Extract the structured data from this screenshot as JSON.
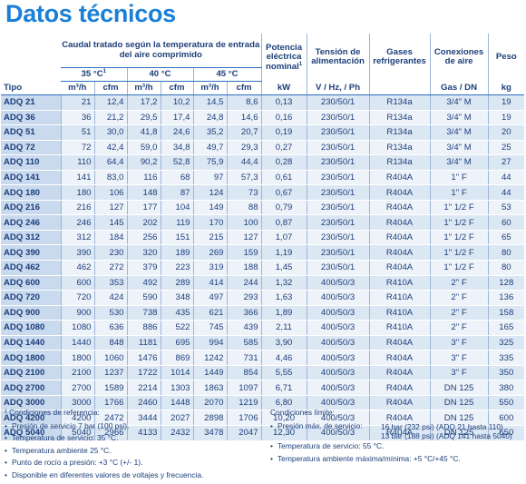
{
  "title": "Datos técnicos",
  "headers": {
    "caudal": "Caudal tratado según la temperatura de entrada del aire comprimido",
    "potencia": "Potencia eléctrica nominal",
    "potencia_sup": "1",
    "tension": "Tensión de alimentación",
    "gases": "Gases refrigerantes",
    "conexiones": "Conexiones de aire",
    "peso": "Peso",
    "t35": "35 °C",
    "t35_sup": "1",
    "t40": "40 °C",
    "t45": "45 °C",
    "tipo": "Tipo",
    "m3h": "m³/h",
    "cfm": "cfm",
    "kw": "kW",
    "vhz": "V / Hz, / Ph",
    "gasdn": "Gas / DN",
    "kg": "kg"
  },
  "rows": [
    {
      "tipo": "ADQ 21",
      "m35": "21",
      "c35": "12,4",
      "m40": "17,2",
      "c40": "10,2",
      "m45": "14,5",
      "c45": "8,6",
      "kw": "0,13",
      "v": "230/50/1",
      "gas": "R134a",
      "con": "3/4\" M",
      "kg": "19"
    },
    {
      "tipo": "ADQ 36",
      "m35": "36",
      "c35": "21,2",
      "m40": "29,5",
      "c40": "17,4",
      "m45": "24,8",
      "c45": "14,6",
      "kw": "0,16",
      "v": "230/50/1",
      "gas": "R134a",
      "con": "3/4\" M",
      "kg": "19"
    },
    {
      "tipo": "ADQ 51",
      "m35": "51",
      "c35": "30,0",
      "m40": "41,8",
      "c40": "24,6",
      "m45": "35,2",
      "c45": "20,7",
      "kw": "0,19",
      "v": "230/50/1",
      "gas": "R134a",
      "con": "3/4\" M",
      "kg": "20"
    },
    {
      "tipo": "ADQ 72",
      "m35": "72",
      "c35": "42,4",
      "m40": "59,0",
      "c40": "34,8",
      "m45": "49,7",
      "c45": "29,3",
      "kw": "0,27",
      "v": "230/50/1",
      "gas": "R134a",
      "con": "3/4\" M",
      "kg": "25"
    },
    {
      "tipo": "ADQ 110",
      "m35": "110",
      "c35": "64,4",
      "m40": "90,2",
      "c40": "52,8",
      "m45": "75,9",
      "c45": "44,4",
      "kw": "0,28",
      "v": "230/50/1",
      "gas": "R134a",
      "con": "3/4\" M",
      "kg": "27"
    },
    {
      "tipo": "ADQ 141",
      "m35": "141",
      "c35": "83,0",
      "m40": "116",
      "c40": "68",
      "m45": "97",
      "c45": "57,3",
      "kw": "0,61",
      "v": "230/50/1",
      "gas": "R404A",
      "con": "1\" F",
      "kg": "44"
    },
    {
      "tipo": "ADQ 180",
      "m35": "180",
      "c35": "106",
      "m40": "148",
      "c40": "87",
      "m45": "124",
      "c45": "73",
      "kw": "0,67",
      "v": "230/50/1",
      "gas": "R404A",
      "con": "1\" F",
      "kg": "44"
    },
    {
      "tipo": "ADQ 216",
      "m35": "216",
      "c35": "127",
      "m40": "177",
      "c40": "104",
      "m45": "149",
      "c45": "88",
      "kw": "0,79",
      "v": "230/50/1",
      "gas": "R404A",
      "con": "1\" 1/2 F",
      "kg": "53"
    },
    {
      "tipo": "ADQ 246",
      "m35": "246",
      "c35": "145",
      "m40": "202",
      "c40": "119",
      "m45": "170",
      "c45": "100",
      "kw": "0,87",
      "v": "230/50/1",
      "gas": "R404A",
      "con": "1\" 1/2 F",
      "kg": "60"
    },
    {
      "tipo": "ADQ 312",
      "m35": "312",
      "c35": "184",
      "m40": "256",
      "c40": "151",
      "m45": "215",
      "c45": "127",
      "kw": "1,07",
      "v": "230/50/1",
      "gas": "R404A",
      "con": "1\" 1/2 F",
      "kg": "65"
    },
    {
      "tipo": "ADQ 390",
      "m35": "390",
      "c35": "230",
      "m40": "320",
      "c40": "189",
      "m45": "269",
      "c45": "159",
      "kw": "1,19",
      "v": "230/50/1",
      "gas": "R404A",
      "con": "1\" 1/2 F",
      "kg": "80"
    },
    {
      "tipo": "ADQ 462",
      "m35": "462",
      "c35": "272",
      "m40": "379",
      "c40": "223",
      "m45": "319",
      "c45": "188",
      "kw": "1,45",
      "v": "230/50/1",
      "gas": "R404A",
      "con": "1\" 1/2 F",
      "kg": "80"
    },
    {
      "tipo": "ADQ 600",
      "m35": "600",
      "c35": "353",
      "m40": "492",
      "c40": "289",
      "m45": "414",
      "c45": "244",
      "kw": "1,32",
      "v": "400/50/3",
      "gas": "R410A",
      "con": "2\" F",
      "kg": "128"
    },
    {
      "tipo": "ADQ 720",
      "m35": "720",
      "c35": "424",
      "m40": "590",
      "c40": "348",
      "m45": "497",
      "c45": "293",
      "kw": "1,63",
      "v": "400/50/3",
      "gas": "R410A",
      "con": "2\" F",
      "kg": "136"
    },
    {
      "tipo": "ADQ 900",
      "m35": "900",
      "c35": "530",
      "m40": "738",
      "c40": "435",
      "m45": "621",
      "c45": "366",
      "kw": "1,89",
      "v": "400/50/3",
      "gas": "R410A",
      "con": "2\" F",
      "kg": "158"
    },
    {
      "tipo": "ADQ 1080",
      "m35": "1080",
      "c35": "636",
      "m40": "886",
      "c40": "522",
      "m45": "745",
      "c45": "439",
      "kw": "2,11",
      "v": "400/50/3",
      "gas": "R410A",
      "con": "2\" F",
      "kg": "165"
    },
    {
      "tipo": "ADQ 1440",
      "m35": "1440",
      "c35": "848",
      "m40": "1181",
      "c40": "695",
      "m45": "994",
      "c45": "585",
      "kw": "3,90",
      "v": "400/50/3",
      "gas": "R404A",
      "con": "3\" F",
      "kg": "325"
    },
    {
      "tipo": "ADQ 1800",
      "m35": "1800",
      "c35": "1060",
      "m40": "1476",
      "c40": "869",
      "m45": "1242",
      "c45": "731",
      "kw": "4,46",
      "v": "400/50/3",
      "gas": "R404A",
      "con": "3\" F",
      "kg": "335"
    },
    {
      "tipo": "ADQ 2100",
      "m35": "2100",
      "c35": "1237",
      "m40": "1722",
      "c40": "1014",
      "m45": "1449",
      "c45": "854",
      "kw": "5,55",
      "v": "400/50/3",
      "gas": "R404A",
      "con": "3\" F",
      "kg": "350"
    },
    {
      "tipo": "ADQ 2700",
      "m35": "2700",
      "c35": "1589",
      "m40": "2214",
      "c40": "1303",
      "m45": "1863",
      "c45": "1097",
      "kw": "6,71",
      "v": "400/50/3",
      "gas": "R404A",
      "con": "DN 125",
      "kg": "380"
    },
    {
      "tipo": "ADQ 3000",
      "m35": "3000",
      "c35": "1766",
      "m40": "2460",
      "c40": "1448",
      "m45": "2070",
      "c45": "1219",
      "kw": "6,80",
      "v": "400/50/3",
      "gas": "R404A",
      "con": "DN 125",
      "kg": "550"
    },
    {
      "tipo": "ADQ 4200",
      "m35": "4200",
      "c35": "2472",
      "m40": "3444",
      "c40": "2027",
      "m45": "2898",
      "c45": "1706",
      "kw": "10,20",
      "v": "400/50/3",
      "gas": "R404A",
      "con": "DN 125",
      "kg": "600"
    },
    {
      "tipo": "ADQ 5040",
      "m35": "5040",
      "c35": "2966",
      "m40": "4133",
      "c40": "2432",
      "m45": "3478",
      "c45": "2047",
      "kw": "12,30",
      "v": "400/50/3",
      "gas": "R404A",
      "con": "DN 125",
      "kg": "650"
    }
  ],
  "notes_left": {
    "heading": "¹ Condiciones de referencia:",
    "items": [
      "Presión de servicio 7 bar (100 psi).",
      "Temperatura de servicio: 35 °C.",
      "Temperatura ambiente 25 °C.",
      "Punto de rocío a presión: +3 °C (+/- 1).",
      "Disponible en diferentes valores de voltajes y frecuencia."
    ]
  },
  "notes_right": {
    "heading": "Condiciones límite:",
    "pressure_label": "Presión máx. de servicio:",
    "pressure_val1": "16 bar (232 psi) (ADQ 21 hasta 110)",
    "pressure_val2": "13 bar (188 psi) (ADQ 141 hasta 5040)",
    "items": [
      "Temperatura de servicio: 55 °C.",
      "Temperatura ambiente máxima/mínima: +5 °C/+45 °C."
    ]
  }
}
